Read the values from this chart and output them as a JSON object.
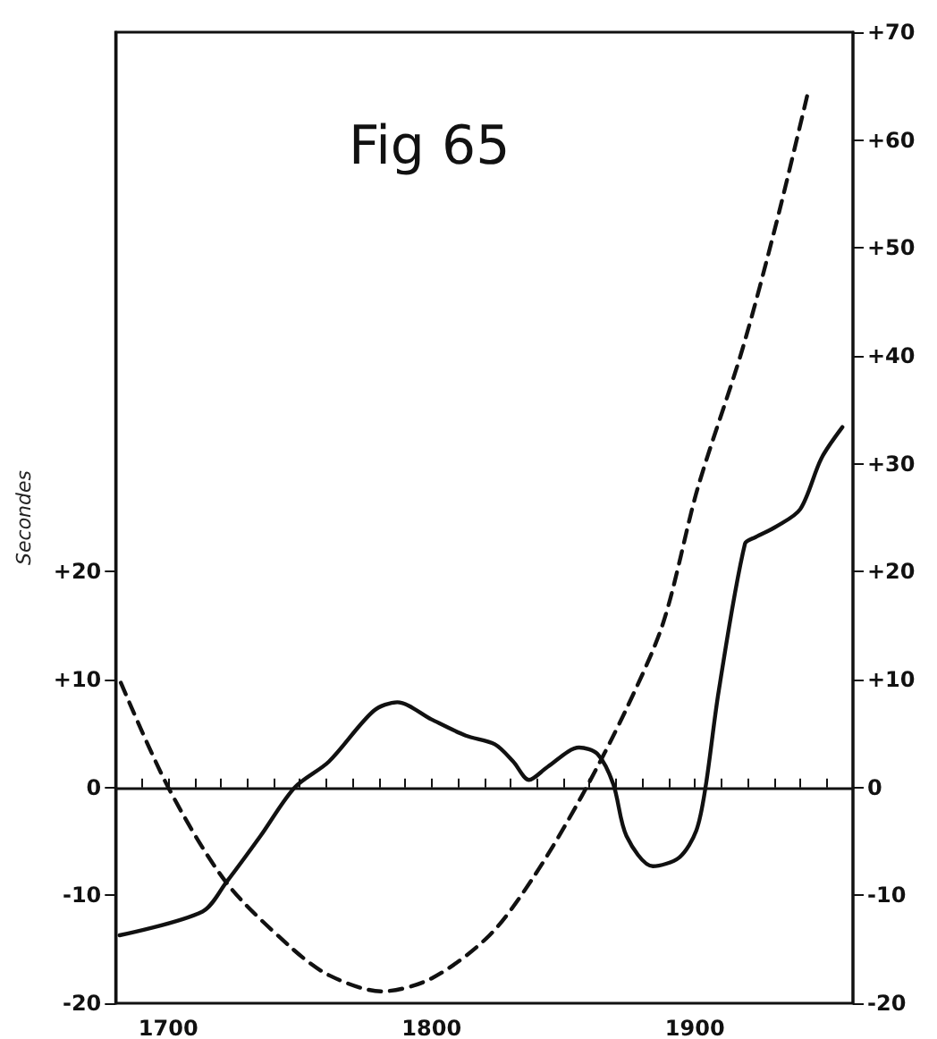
{
  "chart_data": {
    "type": "line",
    "title": "Fig 65",
    "ylabel": "Secondes",
    "xlim": [
      1680,
      1960
    ],
    "ylim": [
      -20,
      70
    ],
    "y2lim": [
      -20,
      70
    ],
    "xticks": [
      {
        "value": 1690,
        "label": null
      },
      {
        "value": 1700,
        "label": "1700"
      },
      {
        "value": 1710,
        "label": null
      },
      {
        "value": 1720,
        "label": null
      },
      {
        "value": 1730,
        "label": null
      },
      {
        "value": 1740,
        "label": null
      },
      {
        "value": 1750,
        "label": null
      },
      {
        "value": 1760,
        "label": null
      },
      {
        "value": 1770,
        "label": null
      },
      {
        "value": 1780,
        "label": null
      },
      {
        "value": 1790,
        "label": null
      },
      {
        "value": 1800,
        "label": "1800"
      },
      {
        "value": 1810,
        "label": null
      },
      {
        "value": 1820,
        "label": null
      },
      {
        "value": 1830,
        "label": null
      },
      {
        "value": 1840,
        "label": null
      },
      {
        "value": 1850,
        "label": null
      },
      {
        "value": 1860,
        "label": null
      },
      {
        "value": 1870,
        "label": null
      },
      {
        "value": 1880,
        "label": null
      },
      {
        "value": 1890,
        "label": null
      },
      {
        "value": 1900,
        "label": "1900"
      },
      {
        "value": 1910,
        "label": null
      },
      {
        "value": 1920,
        "label": null
      },
      {
        "value": 1930,
        "label": null
      },
      {
        "value": 1940,
        "label": null
      },
      {
        "value": 1950,
        "label": null
      }
    ],
    "yticks": [
      -20,
      -10,
      0,
      {
        "value": 10,
        "label": "+10"
      },
      {
        "value": 20,
        "label": "+20"
      }
    ],
    "y2ticks": [
      -20,
      -10,
      0,
      {
        "value": 10,
        "label": "+10"
      },
      {
        "value": 20,
        "label": "+20"
      },
      {
        "value": 30,
        "label": "+30"
      },
      {
        "value": 40,
        "label": "+40"
      },
      {
        "value": 50,
        "label": "+50"
      },
      {
        "value": 60,
        "label": "+60"
      },
      {
        "value": 70,
        "label": "+70"
      }
    ],
    "marker": "none",
    "series": [
      {
        "color": "#111111",
        "line_style": "solid",
        "x": [
          1681.5,
          1713,
          1722,
          1735,
          1748,
          1761,
          1778,
          1787,
          1800,
          1813,
          1824,
          1831,
          1837,
          1844,
          1856,
          1863,
          1869,
          1874,
          1884,
          1894,
          1900.5,
          1904,
          1909,
          1919,
          1923,
          1931,
          1940,
          1948,
          1956
        ],
        "values": [
          -13.7,
          -11.5,
          -8.8,
          -4.5,
          0,
          2.4,
          7.1,
          7.9,
          6.3,
          4.8,
          4.0,
          2.4,
          0.7,
          1.9,
          3.7,
          3.1,
          0.3,
          -4.5,
          -7.3,
          -6.5,
          -4.0,
          0,
          8.9,
          22.6,
          23.2,
          24.2,
          25.8,
          30.5,
          33.4
        ]
      },
      {
        "color": "#111111",
        "line_style": "dashed",
        "x": [
          1682,
          1700,
          1722,
          1746,
          1761,
          1781,
          1800,
          1822,
          1839,
          1857,
          1874,
          1888,
          1901,
          1918,
          1931,
          1943
        ],
        "values": [
          9.7,
          0,
          -8.8,
          -14.7,
          -17.4,
          -18.9,
          -17.7,
          -13.7,
          -8.2,
          -0.8,
          7.3,
          15.3,
          27.7,
          40.6,
          52.4,
          64.5
        ]
      }
    ]
  }
}
